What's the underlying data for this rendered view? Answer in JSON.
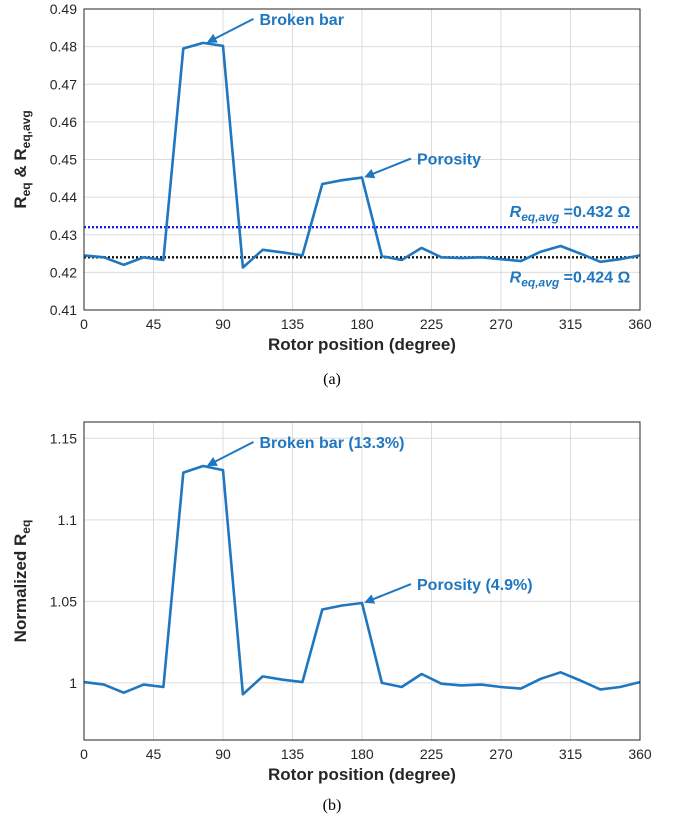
{
  "colors": {
    "series": "#1f77c0",
    "ref_avg_high": "#1f1fd6",
    "ref_avg_low": "#111111",
    "annotation": "#1f77c0"
  },
  "chart_data": [
    {
      "type": "line",
      "panel_label": "(a)",
      "xlabel": "Rotor position (degree)",
      "ylabel": "R_eq & R_eq,avg",
      "xlim": [
        0,
        360
      ],
      "ylim": [
        0.41,
        0.49
      ],
      "xticks": [
        0,
        45,
        90,
        135,
        180,
        225,
        270,
        315,
        360
      ],
      "yticks": [
        0.41,
        0.42,
        0.43,
        0.44,
        0.45,
        0.46,
        0.47,
        0.48,
        0.49
      ],
      "ytick_labels": [
        "0.41",
        "0.42",
        "0.43",
        "0.44",
        "0.45",
        "0.46",
        "0.47",
        "0.48",
        "0.49"
      ],
      "grid": true,
      "series": [
        {
          "x": [
            0,
            12.9,
            25.7,
            38.6,
            51.4,
            64.3,
            77.1,
            90,
            102.9,
            115.7,
            128.6,
            141.4,
            154.3,
            167.1,
            180,
            192.9,
            205.7,
            218.6,
            231.4,
            244.3,
            257.1,
            270,
            282.9,
            295.7,
            308.6,
            321.4,
            334.3,
            347.1,
            360
          ],
          "y": [
            0.4245,
            0.424,
            0.422,
            0.424,
            0.4233,
            0.4795,
            0.481,
            0.4802,
            0.4213,
            0.426,
            0.4253,
            0.4245,
            0.4435,
            0.4445,
            0.4452,
            0.4243,
            0.4233,
            0.4265,
            0.424,
            0.4238,
            0.424,
            0.4235,
            0.423,
            0.4255,
            0.427,
            0.425,
            0.4228,
            0.4235,
            0.4245
          ]
        }
      ],
      "reference_lines": [
        {
          "y": 0.432,
          "label_main": "R",
          "label_sub": "eq,avg",
          "label_value": " =0.432 Ω",
          "color": "#1f1fd6"
        },
        {
          "y": 0.424,
          "label_main": "R",
          "label_sub": "eq,avg",
          "label_value": " =0.424 Ω",
          "color": "#111111"
        }
      ],
      "annotations": [
        {
          "text": "Broken bar",
          "x": 78,
          "y": 0.481
        },
        {
          "text": "Porosity",
          "x": 180,
          "y": 0.4452
        }
      ]
    },
    {
      "type": "line",
      "panel_label": "(b)",
      "xlabel": "Rotor position (degree)",
      "ylabel": "Normalized R_eq",
      "xlim": [
        0,
        360
      ],
      "ylim": [
        0.965,
        1.16
      ],
      "xticks": [
        0,
        45,
        90,
        135,
        180,
        225,
        270,
        315,
        360
      ],
      "yticks": [
        1,
        1.05,
        1.1,
        1.15
      ],
      "ytick_labels": [
        "1",
        "1.05",
        "1.1",
        "1.15"
      ],
      "grid": true,
      "series": [
        {
          "x": [
            0,
            12.9,
            25.7,
            38.6,
            51.4,
            64.3,
            77.1,
            90,
            102.9,
            115.7,
            128.6,
            141.4,
            154.3,
            167.1,
            180,
            192.9,
            205.7,
            218.6,
            231.4,
            244.3,
            257.1,
            270,
            282.9,
            295.7,
            308.6,
            321.4,
            334.3,
            347.1,
            360
          ],
          "y": [
            1.0005,
            0.999,
            0.994,
            0.999,
            0.9975,
            1.129,
            1.133,
            1.1305,
            0.993,
            1.004,
            1.002,
            1.0005,
            1.045,
            1.0475,
            1.049,
            1.0,
            0.9975,
            1.0055,
            0.9995,
            0.9985,
            0.999,
            0.9975,
            0.9965,
            1.0025,
            1.0065,
            1.0015,
            0.996,
            0.9975,
            1.0005
          ]
        }
      ],
      "annotations": [
        {
          "text": "Broken bar (13.3%)",
          "x": 78,
          "y": 1.133
        },
        {
          "text": "Porosity (4.9%)",
          "x": 180,
          "y": 1.049
        }
      ]
    }
  ]
}
